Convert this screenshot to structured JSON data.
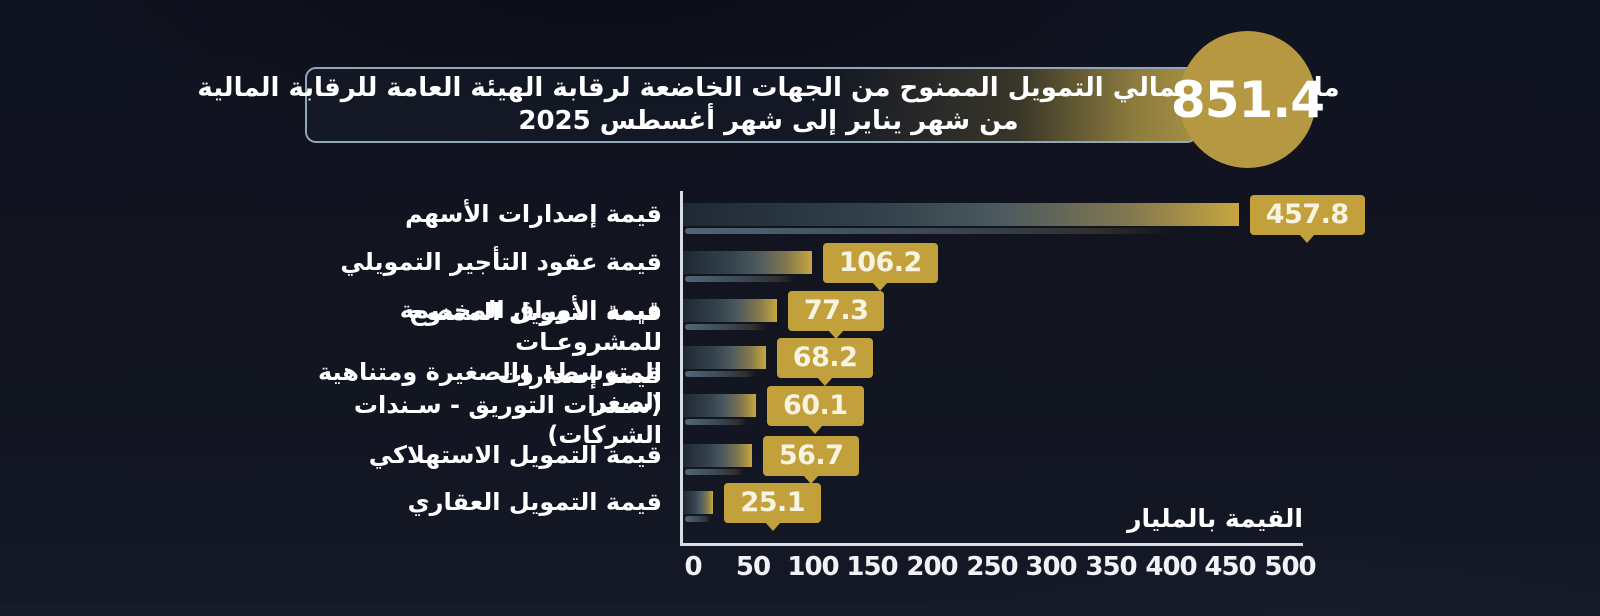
{
  "header": {
    "total_value": "851.4",
    "title_line1": "مليار جنيه إجمالي التمويل الممنوح من الجهات الخاضعة لرقابة الهيئة العامة للرقابة المالية",
    "title_line2": "من شهر يناير إلى شهر أغسطس 2025"
  },
  "chart_data": {
    "type": "bar",
    "orientation": "horizontal",
    "title": "إجمالي التمويل الممنوح من الجهات الخاضعة لرقابة الهيئة العامة للرقابة المالية من شهر يناير إلى شهر أغسطس 2025",
    "total_billion_egp": 851.4,
    "categories": [
      "قيمة إصدارات الأسهم",
      "قيمة عقود التأجير التمويلي",
      "قيمة الأوراق المخصمة",
      "قيمة التمويل الممنوح للمشروعـات\nالمتوسطة والصغيرة ومتناهية الصغر",
      "قيمة إصدارات\n(سـندات التوريق - سـندات الشركات)",
      "قيمة التمويل الاستهلاكي",
      "قيمة التمويل العقاري"
    ],
    "values": [
      457.8,
      106.2,
      77.3,
      68.2,
      60.1,
      56.7,
      25.1
    ],
    "x_ticks": [
      0,
      50,
      100,
      150,
      200,
      250,
      300,
      350,
      400,
      450,
      500
    ],
    "xlim": [
      0,
      500
    ],
    "xlabel": "القيمة بالمليار",
    "ylabel": "",
    "grid": false,
    "legend": false,
    "colors": {
      "background": "#12151f",
      "gold_accent": "#b59841",
      "value_tag": "#c2a03c",
      "bar_gradient_start": "#1f2836",
      "bar_gradient_end": "#c7a63f",
      "axis_line": "#d8dde3",
      "text": "#ffffff",
      "title_box_border": "#92a6b9"
    }
  }
}
